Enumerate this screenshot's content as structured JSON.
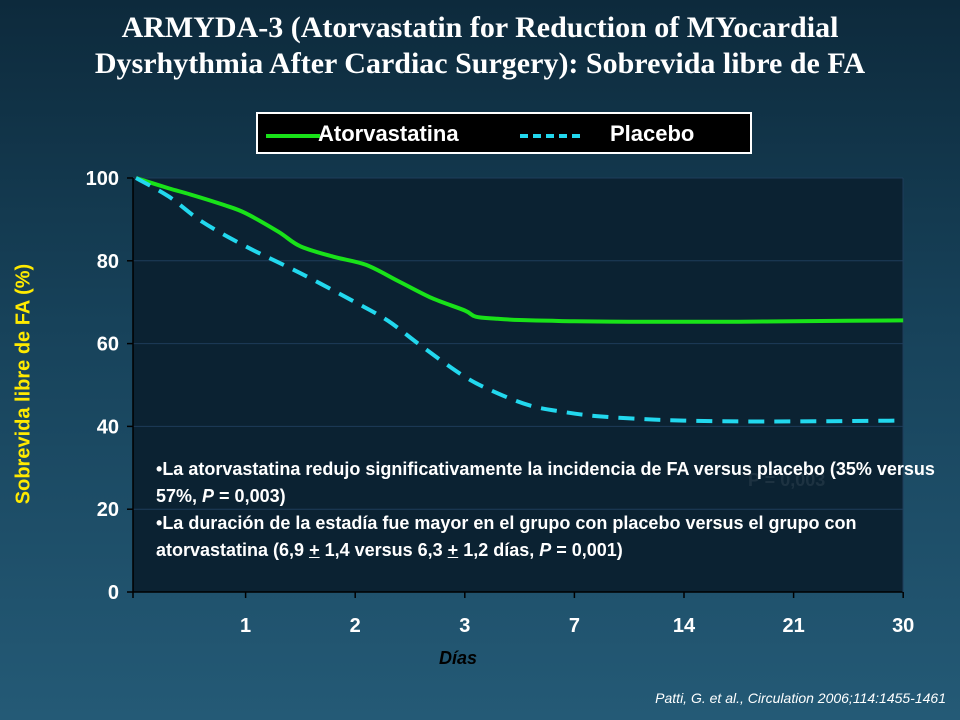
{
  "slide": {
    "title_line1": "ARMYDA-3 (Atorvastatin for Reduction of MYocardial",
    "title_line2": "Dysrhythmia After Cardiac Surgery): Sobrevida libre de FA",
    "citation": "Patti, G. et al., Circulation 2006;114:1455-1461"
  },
  "annotation": {
    "bullet1_text": "La atorvastatina redujo significativamente la incidencia de FA versus placebo (35% versus 57%, ",
    "bullet1_p": "P",
    "bullet1_rest": " = 0,003)",
    "bullet2_text": "La duración de la estadía fue mayor en el grupo con placebo versus el grupo con atorvastatina (6,9 ",
    "pm_symbol": "+",
    "bullet2_mid": " 1,4 versus 6,3 ",
    "bullet2_mid2": " 1,2 días, ",
    "bullet2_p": "P",
    "bullet2_rest": " = 0,001)",
    "faint_text": "P = 0,003"
  },
  "colors": {
    "atorvastatina": "#19e219",
    "placebo": "#22d8ee",
    "ylabel": "#ffea00",
    "plot_bg": "#0b2232"
  },
  "chart_data": {
    "type": "line",
    "xlabel": "Días",
    "ylabel": "Sobrevida libre de FA (%)",
    "ylim": [
      0,
      100
    ],
    "yticks": [
      0,
      20,
      40,
      60,
      80,
      100
    ],
    "xticks": [
      "1",
      "2",
      "3",
      "7",
      "14",
      "21",
      "30"
    ],
    "grid": true,
    "legend_position": "top",
    "series": [
      {
        "name": "Atorvastatina",
        "style": "solid",
        "x": [
          0,
          0.3,
          0.5,
          0.8,
          1.0,
          1.3,
          1.5,
          1.8,
          2.1,
          2.4,
          2.7,
          3.0,
          3.1,
          3.3,
          3.5,
          3.8,
          4.0,
          4.5,
          5.0,
          5.5,
          6.0,
          6.5,
          7.0
        ],
        "y": [
          100,
          97.5,
          96,
          93.5,
          91.5,
          87,
          83.5,
          81,
          79,
          75,
          71,
          68,
          66.5,
          66,
          65.7,
          65.5,
          65.4,
          65.3,
          65.3,
          65.3,
          65.4,
          65.5,
          65.6
        ]
      },
      {
        "name": "Placebo",
        "style": "dashed",
        "x": [
          0,
          0.3,
          0.6,
          1.0,
          1.5,
          2.0,
          2.3,
          2.6,
          3.0,
          3.3,
          3.6,
          3.9,
          4.2,
          4.6,
          5.0,
          5.5,
          6.0,
          6.5,
          7.0
        ],
        "y": [
          100,
          95.5,
          89.5,
          83.5,
          77,
          70,
          65.5,
          59.5,
          52,
          48,
          45,
          43.5,
          42.5,
          41.8,
          41.4,
          41.2,
          41.2,
          41.3,
          41.4
        ]
      }
    ]
  }
}
